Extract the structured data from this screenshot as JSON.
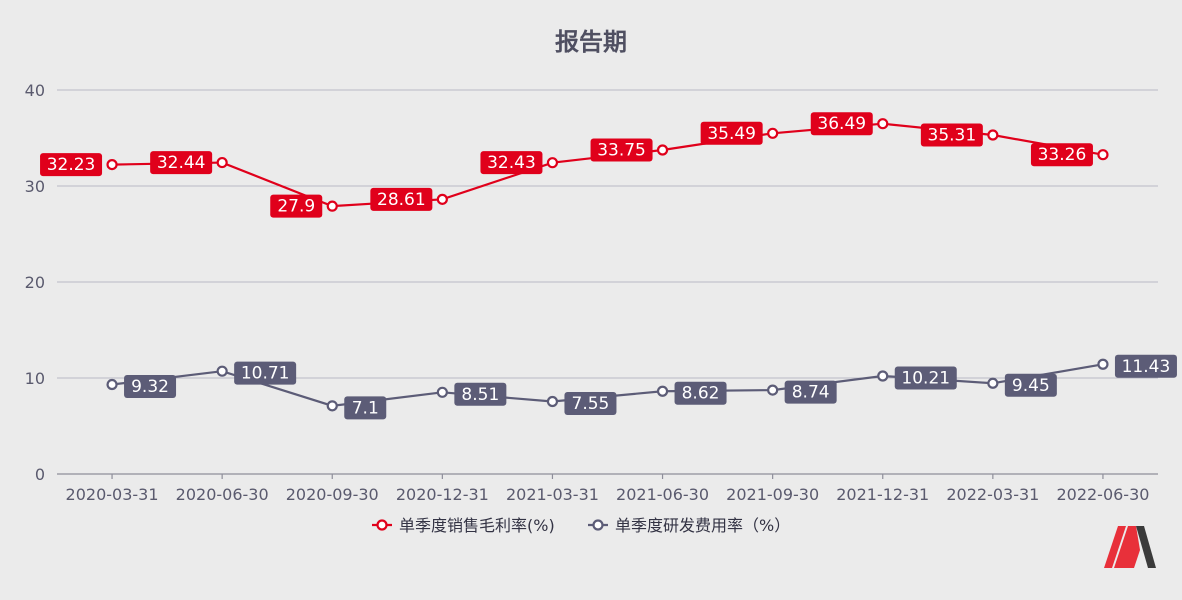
{
  "chart_data": {
    "type": "line",
    "title": "报告期",
    "categories": [
      "2020-03-31",
      "2020-06-30",
      "2020-09-30",
      "2020-12-31",
      "2021-03-31",
      "2021-06-30",
      "2021-09-30",
      "2021-12-31",
      "2022-03-31",
      "2022-06-30"
    ],
    "ylim": [
      0,
      40
    ],
    "yticks": [
      0,
      10,
      20,
      30,
      40
    ],
    "grid": true,
    "legend_position": "bottom",
    "series": [
      {
        "name": "单季度销售毛利率(%)",
        "color": "#e0001b",
        "values": [
          32.23,
          32.44,
          27.9,
          28.61,
          32.43,
          33.75,
          35.49,
          36.49,
          35.31,
          33.26
        ],
        "labels": [
          "32.23",
          "32.44",
          "27.9",
          "28.61",
          "32.43",
          "33.75",
          "35.49",
          "36.49",
          "35.31",
          "33.26"
        ],
        "label_side": "left"
      },
      {
        "name": "单季度研发费用率（%）",
        "color": "#5c5c77",
        "values": [
          9.32,
          10.71,
          7.1,
          8.51,
          7.55,
          8.62,
          8.74,
          10.21,
          9.45,
          11.43
        ],
        "labels": [
          "9.32",
          "10.71",
          "7.1",
          "8.51",
          "7.55",
          "8.62",
          "8.74",
          "10.21",
          "9.45",
          "11.43"
        ],
        "label_side": "right"
      }
    ]
  },
  "logo": {
    "name": "brand-logo-icon",
    "colors": [
      "#e8303a",
      "#3a3a3a"
    ]
  }
}
